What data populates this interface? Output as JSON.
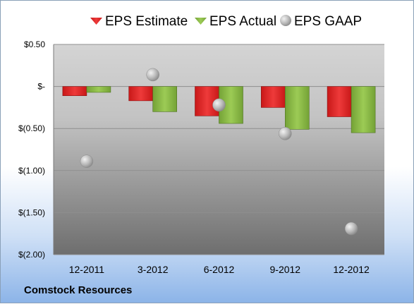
{
  "company": "Comstock Resources",
  "colors": {
    "estimate": "#e02020",
    "actual": "#8dbb46",
    "gaap": "#bdbdbd"
  },
  "chart_data": {
    "type": "bar",
    "categories": [
      "12-2011",
      "3-2012",
      "6-2012",
      "9-2012",
      "12-2012"
    ],
    "series": [
      {
        "name": "EPS Estimate",
        "kind": "bar",
        "values": [
          -0.11,
          -0.17,
          -0.35,
          -0.25,
          -0.36
        ]
      },
      {
        "name": "EPS Actual",
        "kind": "bar",
        "values": [
          -0.07,
          -0.3,
          -0.44,
          -0.51,
          -0.55
        ]
      },
      {
        "name": "EPS GAAP",
        "kind": "marker",
        "values": [
          -0.89,
          0.14,
          -0.22,
          -0.56,
          -1.69
        ]
      }
    ],
    "ylim": [
      -2.0,
      0.5
    ],
    "yticks": [
      0.5,
      0,
      -0.5,
      -1.0,
      -1.5,
      -2.0
    ],
    "ytick_labels": [
      "$0.50",
      "$-",
      "$(0.50)",
      "$(1.00)",
      "$(1.50)",
      "$(2.00)"
    ],
    "legend": "top",
    "grid": true
  }
}
